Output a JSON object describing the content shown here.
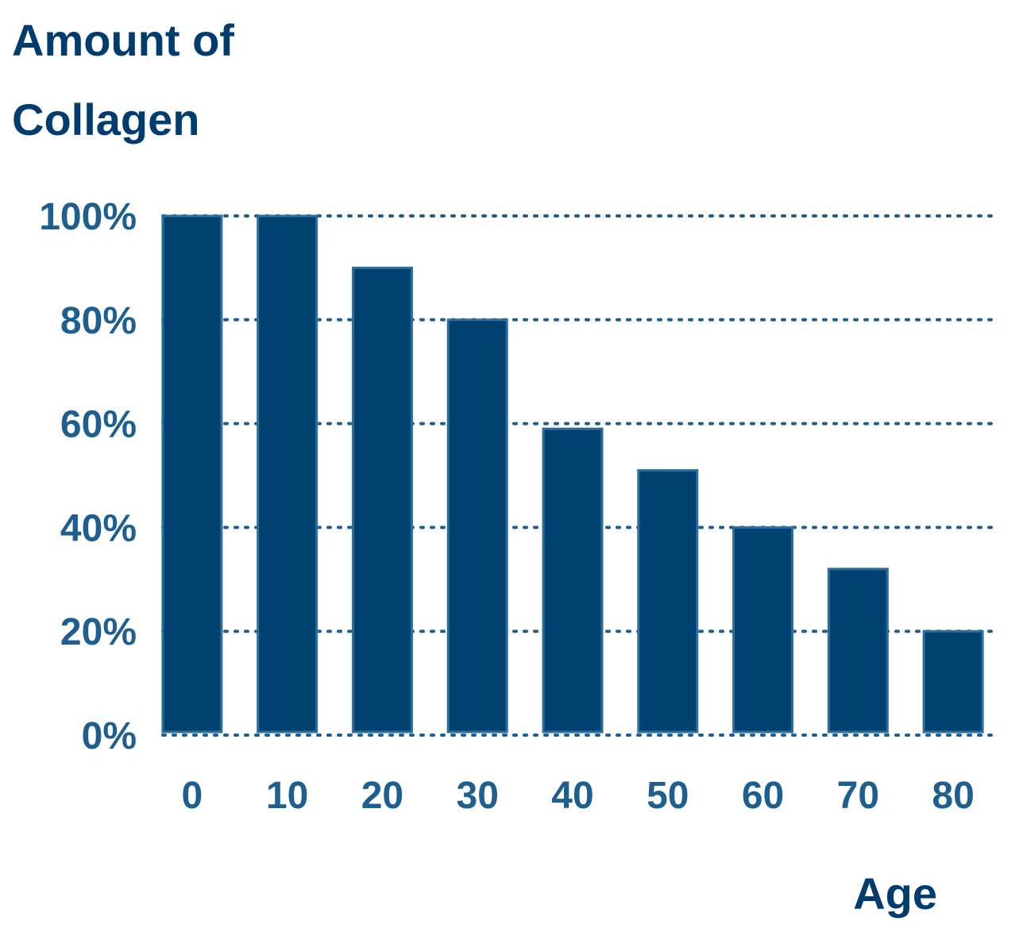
{
  "chart_data": {
    "type": "bar",
    "ylabel_lines": [
      "Amount of",
      "Collagen"
    ],
    "xlabel": "Age",
    "categories": [
      "0",
      "10",
      "20",
      "30",
      "40",
      "50",
      "60",
      "70",
      "80"
    ],
    "values": [
      100,
      100,
      90,
      80,
      59,
      51,
      40,
      32,
      20
    ],
    "yticks": [
      "0%",
      "20%",
      "40%",
      "60%",
      "80%",
      "100%"
    ],
    "ylim": [
      0,
      100
    ],
    "grid": true,
    "bar_color": "#00426f",
    "text_color": "#1f5f8f",
    "title_color": "#003d6e"
  }
}
